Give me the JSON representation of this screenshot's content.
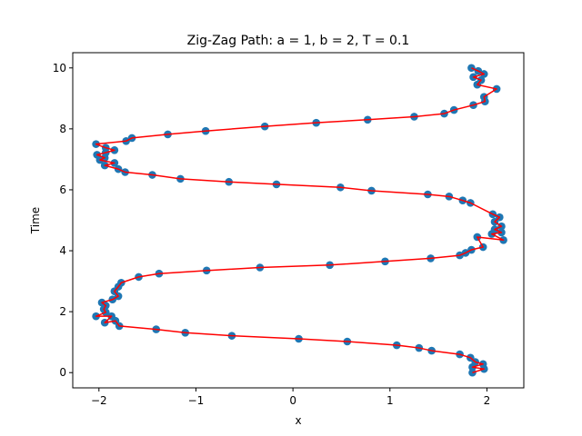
{
  "chart_data": {
    "type": "line",
    "title": "Zig-Zag Path: a = 1, b = 2, T = 0.1",
    "xlabel": "x",
    "ylabel": "Time",
    "xlim": [
      -2.27,
      2.38
    ],
    "ylim": [
      -0.5,
      10.5
    ],
    "xticks": [
      -2,
      -1,
      0,
      1,
      2
    ],
    "yticks": [
      0,
      2,
      4,
      6,
      8,
      10
    ],
    "x_tick_labels": [
      "−2",
      "−1",
      "0",
      "1",
      "2"
    ],
    "y_tick_labels": [
      "0",
      "2",
      "4",
      "6",
      "8",
      "10"
    ],
    "grid": false,
    "line_color": "#ff0000",
    "marker_color": "#1f77b4",
    "series": [
      {
        "x": [
          1.85,
          1.97,
          1.85,
          1.96,
          1.88,
          1.83,
          1.72,
          1.43,
          1.3,
          1.07,
          0.56,
          0.06,
          -0.63,
          -1.11,
          -1.41,
          -1.79,
          -1.83,
          -1.94,
          -1.87,
          -2.03,
          -1.93,
          -1.95,
          -1.93,
          -1.97,
          -1.86,
          -1.8,
          -1.84,
          -1.8,
          -1.77,
          -1.59,
          -1.38,
          -0.89,
          -0.34,
          0.38,
          0.95,
          1.42,
          1.72,
          1.78,
          1.84,
          1.96,
          1.9,
          2.17,
          2.05,
          2.15,
          2.08,
          2.15,
          2.08,
          2.13,
          2.06,
          1.83,
          1.75,
          1.61,
          1.39,
          0.81,
          0.49,
          -0.17,
          -0.66,
          -1.16,
          -1.45,
          -1.73,
          -1.8,
          -1.94,
          -1.84,
          -1.99,
          -1.94,
          -2.02,
          -1.93,
          -1.84,
          -1.93,
          -2.03,
          -1.72,
          -1.66,
          -1.29,
          -0.9,
          -0.29,
          0.24,
          0.77,
          1.25,
          1.56,
          1.66,
          1.86,
          1.98,
          1.97,
          2.1,
          1.9,
          1.94,
          1.86,
          1.97,
          1.91,
          1.84
        ],
        "y": [
          0.0,
          0.12,
          0.18,
          0.28,
          0.35,
          0.49,
          0.6,
          0.72,
          0.81,
          0.9,
          1.02,
          1.11,
          1.21,
          1.31,
          1.42,
          1.53,
          1.7,
          1.64,
          1.85,
          1.85,
          1.98,
          2.08,
          2.2,
          2.3,
          2.4,
          2.51,
          2.67,
          2.82,
          2.95,
          3.14,
          3.25,
          3.35,
          3.45,
          3.53,
          3.65,
          3.75,
          3.85,
          3.93,
          4.03,
          4.12,
          4.45,
          4.35,
          4.55,
          4.6,
          4.7,
          4.8,
          4.95,
          5.1,
          5.2,
          5.57,
          5.65,
          5.78,
          5.85,
          5.97,
          6.08,
          6.18,
          6.26,
          6.36,
          6.49,
          6.58,
          6.68,
          6.8,
          6.88,
          6.98,
          7.05,
          7.15,
          7.22,
          7.3,
          7.38,
          7.5,
          7.6,
          7.7,
          7.82,
          7.93,
          8.08,
          8.2,
          8.3,
          8.4,
          8.5,
          8.62,
          8.78,
          8.9,
          9.05,
          9.31,
          9.45,
          9.6,
          9.7,
          9.8,
          9.9,
          10.0
        ]
      }
    ]
  }
}
